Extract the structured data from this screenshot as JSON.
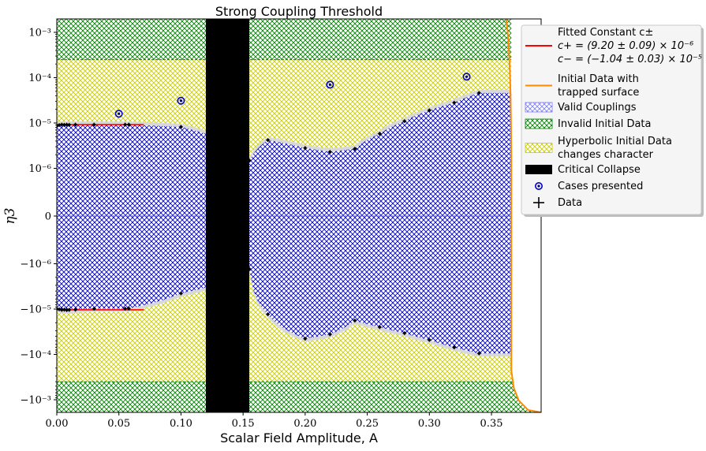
{
  "chart_data": {
    "type": "scatter",
    "title": "Strong Coupling Threshold",
    "xlabel": "Scalar Field Amplitude, A",
    "ylabel": "η3",
    "xlim": [
      0.0,
      0.39
    ],
    "x_ticks": [
      "0.00",
      "0.05",
      "0.10",
      "0.15",
      "0.20",
      "0.25",
      "0.30",
      "0.35"
    ],
    "x_tick_values": [
      0.0,
      0.05,
      0.1,
      0.15,
      0.2,
      0.25,
      0.3,
      0.35
    ],
    "y_scale": "symlog",
    "y_ticks": [
      "−10⁻³",
      "−10⁻⁴",
      "−10⁻⁵",
      "−10⁻⁶",
      "0",
      "10⁻⁶",
      "10⁻⁵",
      "10⁻⁴",
      "10⁻³"
    ],
    "y_tick_values": [
      -0.001,
      -0.0001,
      -1e-05,
      -1e-06,
      0,
      1e-06,
      1e-05,
      0.0001,
      0.001
    ],
    "legend_position": "outside-right",
    "regions": [
      {
        "label": "Valid Couplings",
        "color": "#0000cc"
      },
      {
        "label": "Invalid Initial Data",
        "color": "#008000",
        "y_ranges": [
          [
            0.00025,
            0.0025
          ],
          [
            -0.0025,
            -0.0004
          ]
        ]
      },
      {
        "label": "Hyperbolic Initial Data changes character",
        "color": "#cccc00"
      },
      {
        "label": "Critical Collapse",
        "color": "#000000",
        "x_range": [
          0.12,
          0.155
        ]
      }
    ],
    "fitted_constant": {
      "label": "Fitted Constant c±",
      "c_plus": "c+ = (9.20 ± 0.09) × 10⁻⁶",
      "c_minus": "c− = (−1.04 ± 0.03) × 10⁻⁵",
      "x_range": [
        0.0,
        0.07
      ],
      "c_plus_value": 9.2e-06,
      "c_minus_value": -1.04e-05,
      "color": "#ff0000"
    },
    "trapped_surface": {
      "label": "Initial Data with trapped surface",
      "color": "#ff8c00"
    },
    "cases_presented": {
      "label": "Cases presented",
      "x": [
        0.05,
        0.1,
        0.22,
        0.33
      ],
      "y": [
        1.6e-05,
        3.1e-05,
        7e-05,
        0.000105
      ]
    },
    "data": {
      "label": "Data",
      "x": [
        0.0,
        0.002,
        0.004,
        0.006,
        0.008,
        0.01,
        0.015,
        0.03,
        0.055,
        0.058,
        0.1,
        0.155,
        0.17,
        0.2,
        0.22,
        0.24,
        0.26,
        0.28,
        0.3,
        0.32,
        0.34
      ],
      "upper": [
        8.8e-06,
        9e-06,
        9.2e-06,
        9.1e-06,
        9.2e-06,
        9.1e-06,
        9.2e-06,
        9.2e-06,
        9.2e-06,
        9.2e-06,
        8.2e-06,
        1.5e-06,
        4.2e-06,
        2.8e-06,
        2.3e-06,
        2.7e-06,
        5.8e-06,
        1.1e-05,
        1.9e-05,
        2.8e-05,
        4.6e-05
      ],
      "lower": [
        -9.8e-06,
        -1.01e-05,
        -1.04e-05,
        -1.03e-05,
        -1.05e-05,
        -1.04e-05,
        -1.03e-05,
        -9.8e-06,
        -9.8e-06,
        -9.7e-06,
        -4.5e-06,
        -1.3e-06,
        -1.3e-05,
        -4.5e-05,
        -3.6e-05,
        -1.8e-05,
        -2.5e-05,
        -3.4e-05,
        -4.8e-05,
        -7e-05,
        -9.5e-05
      ]
    },
    "legend": [
      {
        "key": "fit",
        "lines": [
          "Fitted Constant c±",
          "c+ = (9.20 ± 0.09) × 10⁻⁶",
          "c− = (−1.04 ± 0.03) × 10⁻⁵"
        ]
      },
      {
        "key": "trapped",
        "lines": [
          "Initial Data with",
          "trapped surface"
        ]
      },
      {
        "key": "valid",
        "lines": [
          "Valid Couplings"
        ]
      },
      {
        "key": "invalid",
        "lines": [
          "Invalid Initial Data"
        ]
      },
      {
        "key": "hyperbolic",
        "lines": [
          "Hyperbolic Initial Data",
          "changes character"
        ]
      },
      {
        "key": "critical",
        "lines": [
          "Critical Collapse"
        ]
      },
      {
        "key": "cases",
        "lines": [
          "Cases presented"
        ]
      },
      {
        "key": "data",
        "lines": [
          "Data"
        ]
      }
    ]
  }
}
